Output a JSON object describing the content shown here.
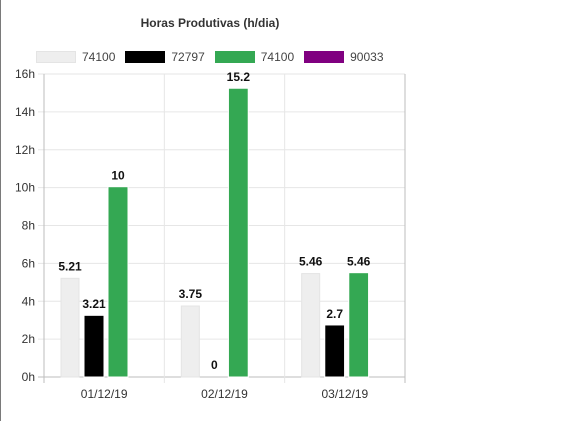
{
  "chart_data": {
    "type": "bar",
    "title": "Horas Produtivas (h/dia)",
    "categories": [
      "01/12/19",
      "02/12/19",
      "03/12/19"
    ],
    "y_ticks": [
      "0h",
      "2h",
      "4h",
      "6h",
      "8h",
      "10h",
      "12h",
      "14h",
      "16h"
    ],
    "ylim": [
      0,
      16
    ],
    "grid": true,
    "legend_position": "top",
    "series": [
      {
        "name": "74100",
        "color": "#eeeeee",
        "border": "#e4e4e4",
        "values": [
          5.21,
          3.75,
          5.46
        ],
        "labels": [
          "5.21",
          "3.75",
          "5.46"
        ]
      },
      {
        "name": "72797",
        "color": "#000000",
        "border": "#000000",
        "values": [
          3.21,
          0,
          2.7
        ],
        "labels": [
          "3.21",
          "0",
          "2.7"
        ]
      },
      {
        "name": "74100",
        "color": "#34a853",
        "border": "#34a853",
        "values": [
          10,
          15.2,
          5.46
        ],
        "labels": [
          "10",
          "15.2",
          "5.46"
        ]
      },
      {
        "name": "90033",
        "color": "#800080",
        "border": "#800080",
        "values": [
          0,
          0,
          0
        ],
        "labels": []
      }
    ]
  }
}
